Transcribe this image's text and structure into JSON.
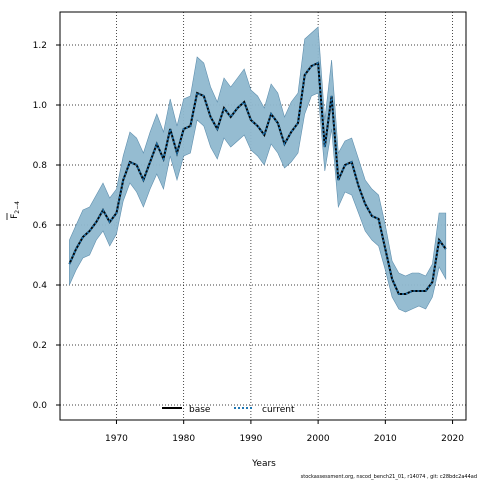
{
  "chart_data": {
    "type": "line",
    "xlabel": "Years",
    "ylabel_main": "F",
    "ylabel_sub": "2−4",
    "xlim": [
      1961.6,
      2022.0
    ],
    "ylim": [
      -0.05,
      1.31
    ],
    "x_ticks": [
      1970,
      1980,
      1990,
      2000,
      2010,
      2020
    ],
    "y_ticks": [
      0.0,
      0.2,
      0.4,
      0.6,
      0.8,
      1.0,
      1.2
    ],
    "y_tick_labels": [
      "0.0",
      "0.2",
      "0.4",
      "0.6",
      "0.8",
      "1.0",
      "1.2"
    ],
    "grid": true,
    "legend": {
      "placement": "bottom-center"
    },
    "colors": {
      "band": "#8fb8cf",
      "band_edge": "#5f8fae",
      "base": "#000000",
      "current": "#1f77b4"
    },
    "x": [
      1963,
      1964,
      1965,
      1966,
      1967,
      1968,
      1969,
      1970,
      1971,
      1972,
      1973,
      1974,
      1975,
      1976,
      1977,
      1978,
      1979,
      1980,
      1981,
      1982,
      1983,
      1984,
      1985,
      1986,
      1987,
      1988,
      1989,
      1990,
      1991,
      1992,
      1993,
      1994,
      1995,
      1996,
      1997,
      1998,
      1999,
      2000,
      2001,
      2002,
      2003,
      2004,
      2005,
      2006,
      2007,
      2008,
      2009,
      2010,
      2011,
      2012,
      2013,
      2014,
      2015,
      2016,
      2017,
      2018,
      2019
    ],
    "band_upper": [
      0.55,
      0.6,
      0.65,
      0.66,
      0.7,
      0.74,
      0.69,
      0.72,
      0.83,
      0.91,
      0.89,
      0.84,
      0.91,
      0.97,
      0.91,
      1.02,
      0.93,
      1.02,
      1.03,
      1.16,
      1.14,
      1.06,
      1.01,
      1.09,
      1.06,
      1.09,
      1.12,
      1.05,
      1.03,
      0.99,
      1.07,
      1.04,
      0.96,
      1.01,
      1.04,
      1.22,
      1.24,
      1.26,
      0.95,
      1.15,
      0.84,
      0.88,
      0.89,
      0.82,
      0.75,
      0.72,
      0.7,
      0.6,
      0.48,
      0.44,
      0.43,
      0.44,
      0.44,
      0.43,
      0.47,
      0.64,
      0.64
    ],
    "band_lower": [
      0.4,
      0.45,
      0.49,
      0.5,
      0.55,
      0.58,
      0.53,
      0.57,
      0.68,
      0.74,
      0.71,
      0.66,
      0.72,
      0.77,
      0.72,
      0.83,
      0.75,
      0.83,
      0.84,
      0.95,
      0.93,
      0.86,
      0.82,
      0.89,
      0.86,
      0.88,
      0.9,
      0.85,
      0.83,
      0.8,
      0.87,
      0.84,
      0.79,
      0.81,
      0.84,
      0.97,
      1.03,
      1.04,
      0.78,
      0.92,
      0.66,
      0.71,
      0.7,
      0.64,
      0.58,
      0.55,
      0.53,
      0.45,
      0.36,
      0.32,
      0.31,
      0.32,
      0.33,
      0.32,
      0.36,
      0.46,
      0.42
    ],
    "series": [
      {
        "name": "base",
        "values": [
          0.47,
          0.52,
          0.56,
          0.58,
          0.61,
          0.65,
          0.61,
          0.64,
          0.75,
          0.81,
          0.8,
          0.75,
          0.81,
          0.87,
          0.82,
          0.92,
          0.84,
          0.92,
          0.93,
          1.04,
          1.03,
          0.96,
          0.92,
          0.99,
          0.96,
          0.99,
          1.01,
          0.95,
          0.93,
          0.9,
          0.97,
          0.94,
          0.87,
          0.91,
          0.94,
          1.1,
          1.13,
          1.14,
          0.86,
          1.03,
          0.75,
          0.8,
          0.81,
          0.73,
          0.67,
          0.63,
          0.62,
          0.52,
          0.42,
          0.37,
          0.37,
          0.38,
          0.38,
          0.38,
          0.41,
          0.55,
          0.52
        ]
      },
      {
        "name": "current",
        "values": [
          0.47,
          0.52,
          0.56,
          0.58,
          0.61,
          0.65,
          0.61,
          0.64,
          0.75,
          0.81,
          0.8,
          0.75,
          0.81,
          0.87,
          0.82,
          0.92,
          0.84,
          0.92,
          0.93,
          1.04,
          1.03,
          0.96,
          0.92,
          0.99,
          0.96,
          0.99,
          1.01,
          0.95,
          0.93,
          0.9,
          0.97,
          0.94,
          0.87,
          0.91,
          0.94,
          1.1,
          1.13,
          1.14,
          0.86,
          1.03,
          0.75,
          0.8,
          0.81,
          0.73,
          0.67,
          0.63,
          0.62,
          0.52,
          0.42,
          0.37,
          0.37,
          0.38,
          0.38,
          0.38,
          0.41,
          0.55,
          0.52
        ]
      }
    ],
    "footnote": "stockassessment.org, nscod_bench21_01, r14074 , git: c28bdc2a44ad"
  }
}
